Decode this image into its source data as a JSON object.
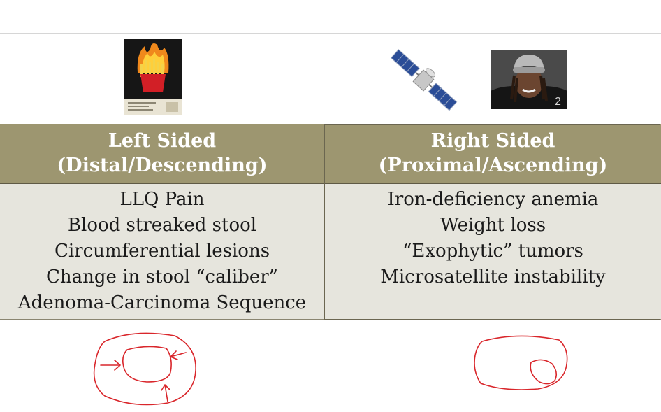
{
  "table": {
    "left": {
      "header": [
        "Left Sided",
        "(Distal/Descending)"
      ],
      "rows": [
        "LLQ Pain",
        "Blood streaked stool",
        "Circumferential lesions",
        "Change in stool “caliber”",
        "Adenoma-Carcinoma Sequence"
      ]
    },
    "right": {
      "header": [
        "Right Sided",
        "(Proximal/Ascending)"
      ],
      "rows": [
        "Iron-deficiency anemia",
        "Weight loss",
        "“Exophytic” tumors",
        "Microsatellite instability"
      ]
    }
  },
  "colors": {
    "header_bg": "#9d9670",
    "body_bg": "#e6e5dd",
    "ink": "#d9262b"
  }
}
